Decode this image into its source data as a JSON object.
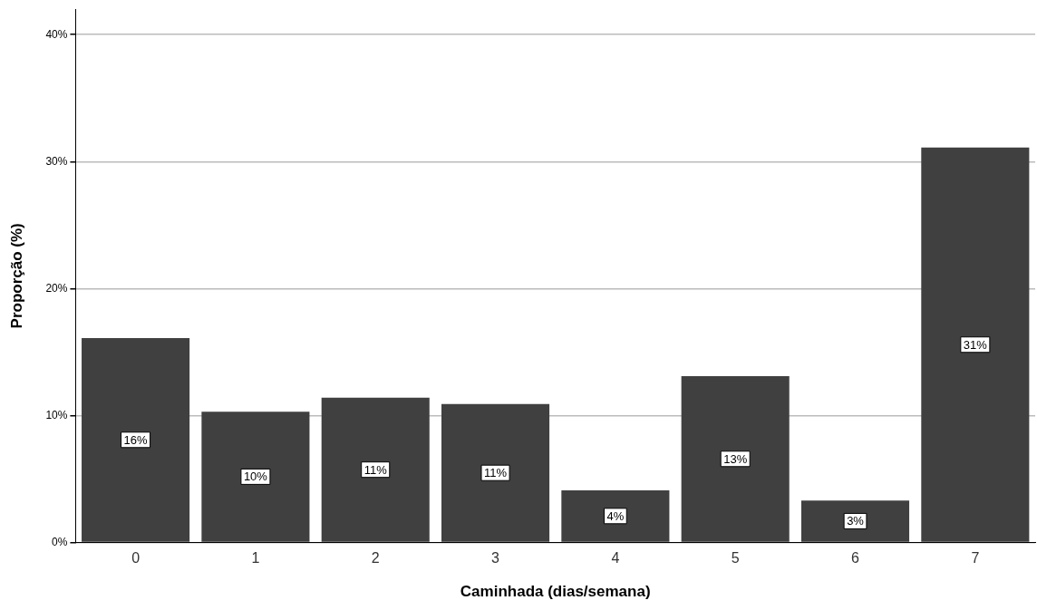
{
  "chart_data": {
    "type": "bar",
    "xlabel": "Caminhada (dias/semana)",
    "ylabel": "Proporção (%)",
    "categories": [
      "0",
      "1",
      "2",
      "3",
      "4",
      "5",
      "6",
      "7"
    ],
    "values": [
      16.1,
      10.3,
      11.4,
      10.9,
      4.1,
      13.1,
      3.3,
      31.1
    ],
    "value_labels": [
      "16%",
      "10%",
      "11%",
      "11%",
      "4%",
      "13%",
      "3%",
      "31%"
    ],
    "color": "#404040",
    "ylim": [
      0,
      42
    ],
    "yticks": [
      {
        "value": 0,
        "label": "0%"
      },
      {
        "value": 10,
        "label": "10%"
      },
      {
        "value": 20,
        "label": "20%"
      },
      {
        "value": 30,
        "label": "30%"
      },
      {
        "value": 40,
        "label": "40%"
      }
    ],
    "grid": "y",
    "legend": false
  }
}
